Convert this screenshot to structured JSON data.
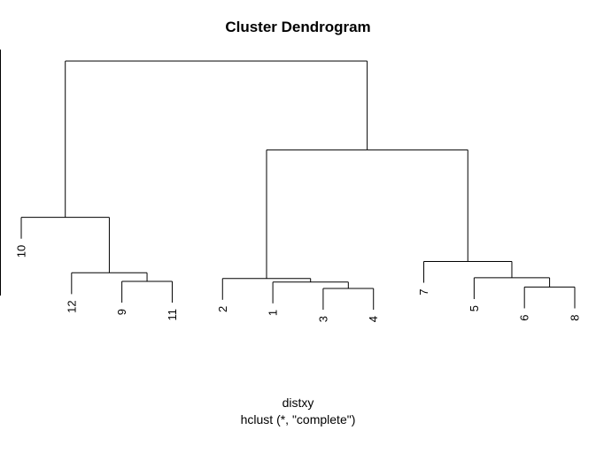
{
  "chart_data": {
    "type": "dendrogram",
    "title": "Cluster Dendrogram",
    "xlabel": "distxy",
    "sub": "hclust (*, \"complete\")",
    "ylabel": "",
    "leaves": [
      "10",
      "12",
      "9",
      "11",
      "2",
      "1",
      "3",
      "4",
      "7",
      "5",
      "6",
      "8"
    ],
    "nodes": [
      {
        "id": "n1",
        "left": "9",
        "right": "11",
        "height": 0.2
      },
      {
        "id": "n2",
        "left": "12",
        "right": "n1",
        "height": 0.32
      },
      {
        "id": "n3",
        "left": "10",
        "right": "n2",
        "height": 1.1
      },
      {
        "id": "n4",
        "left": "3",
        "right": "4",
        "height": 0.1
      },
      {
        "id": "n5",
        "left": "1",
        "right": "n4",
        "height": 0.19
      },
      {
        "id": "n6",
        "left": "2",
        "right": "n5",
        "height": 0.24
      },
      {
        "id": "n7",
        "left": "6",
        "right": "8",
        "height": 0.12
      },
      {
        "id": "n8",
        "left": "5",
        "right": "n7",
        "height": 0.25
      },
      {
        "id": "n9",
        "left": "7",
        "right": "n8",
        "height": 0.48
      },
      {
        "id": "n10",
        "left": "n6",
        "right": "n9",
        "height": 2.05
      },
      {
        "id": "n11",
        "left": "n3",
        "right": "n10",
        "height": 3.3
      }
    ],
    "leaf_hang": 0.3,
    "ylim": [
      0,
      3.3
    ],
    "yaxis": "partially visible at left edge"
  }
}
